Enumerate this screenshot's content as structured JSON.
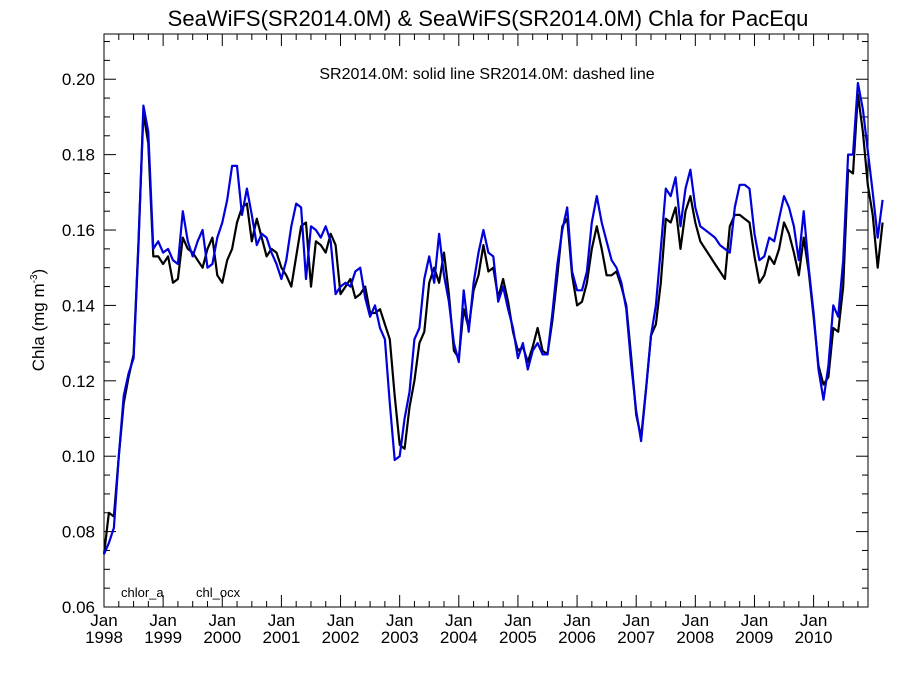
{
  "chart_data": {
    "type": "line",
    "title": "SeaWiFS(SR2014.0M) & SeaWiFS(SR2014.0M)  Chla for PacEqu",
    "annotation": "SR2014.0M: solid line   SR2014.0M: dashed line",
    "ylabel": "Chla (mg m",
    "ylabel_sup": "-3",
    "ylabel_close": ")",
    "xlim": [
      1998.0,
      2010.92
    ],
    "ylim": [
      0.06,
      0.212
    ],
    "yticks": [
      0.06,
      0.08,
      0.1,
      0.12,
      0.14,
      0.16,
      0.18,
      0.2
    ],
    "yticklabels": [
      "0.06",
      "0.08",
      "0.10",
      "0.12",
      "0.14",
      "0.16",
      "0.18",
      "0.20"
    ],
    "xticks": [
      {
        "x": 1998,
        "top": "Jan",
        "bottom": "1998"
      },
      {
        "x": 1999,
        "top": "Jan",
        "bottom": "1999"
      },
      {
        "x": 2000,
        "top": "Jan",
        "bottom": "2000"
      },
      {
        "x": 2001,
        "top": "Jan",
        "bottom": "2001"
      },
      {
        "x": 2002,
        "top": "Jan",
        "bottom": "2002"
      },
      {
        "x": 2003,
        "top": "Jan",
        "bottom": "2003"
      },
      {
        "x": 2004,
        "top": "Jan",
        "bottom": "2004"
      },
      {
        "x": 2005,
        "top": "Jan",
        "bottom": "2005"
      },
      {
        "x": 2006,
        "top": "Jan",
        "bottom": "2006"
      },
      {
        "x": 2007,
        "top": "Jan",
        "bottom": "2007"
      },
      {
        "x": 2008,
        "top": "Jan",
        "bottom": "2008"
      },
      {
        "x": 2009,
        "top": "Jan",
        "bottom": "2009"
      },
      {
        "x": 2010,
        "top": "Jan",
        "bottom": "2010"
      }
    ],
    "grid": false,
    "legend_position": "bottom-left",
    "series": [
      {
        "name": "chlor_a",
        "color": "#000000",
        "values": [
          0.074,
          0.085,
          0.084,
          0.1,
          0.114,
          0.121,
          0.127,
          0.157,
          0.191,
          0.183,
          0.153,
          0.153,
          0.151,
          0.153,
          0.146,
          0.147,
          0.158,
          0.155,
          0.154,
          0.152,
          0.15,
          0.155,
          0.158,
          0.148,
          0.146,
          0.152,
          0.155,
          0.162,
          0.166,
          0.167,
          0.157,
          0.163,
          0.158,
          0.153,
          0.155,
          0.154,
          0.15,
          0.148,
          0.145,
          0.153,
          0.161,
          0.162,
          0.145,
          0.157,
          0.156,
          0.154,
          0.159,
          0.156,
          0.143,
          0.145,
          0.147,
          0.142,
          0.143,
          0.145,
          0.138,
          0.138,
          0.139,
          0.135,
          0.131,
          0.116,
          0.103,
          0.102,
          0.113,
          0.12,
          0.13,
          0.133,
          0.146,
          0.15,
          0.146,
          0.154,
          0.143,
          0.128,
          0.126,
          0.139,
          0.134,
          0.144,
          0.148,
          0.156,
          0.149,
          0.15,
          0.142,
          0.147,
          0.141,
          0.133,
          0.128,
          0.129,
          0.125,
          0.129,
          0.134,
          0.128,
          0.127,
          0.136,
          0.148,
          0.161,
          0.163,
          0.148,
          0.14,
          0.141,
          0.146,
          0.155,
          0.161,
          0.155,
          0.148,
          0.148,
          0.149,
          0.145,
          0.14,
          0.126,
          0.111,
          0.105,
          0.118,
          0.132,
          0.135,
          0.146,
          0.163,
          0.162,
          0.166,
          0.155,
          0.165,
          0.169,
          0.162,
          0.157,
          0.155,
          0.153,
          0.151,
          0.149,
          0.147,
          0.161,
          0.164,
          0.164,
          0.163,
          0.162,
          0.153,
          0.146,
          0.148,
          0.153,
          0.151,
          0.155,
          0.162,
          0.159,
          0.154,
          0.148,
          0.158,
          0.149,
          0.137,
          0.124,
          0.119,
          0.121,
          0.134,
          0.133,
          0.145,
          0.176,
          0.175,
          0.196,
          0.186,
          0.172,
          0.164,
          0.15,
          0.162
        ]
      },
      {
        "name": "chl_ocx",
        "color": "#0000dd",
        "values": [
          0.074,
          0.077,
          0.081,
          0.1,
          0.116,
          0.122,
          0.126,
          0.156,
          0.193,
          0.186,
          0.155,
          0.157,
          0.154,
          0.155,
          0.152,
          0.151,
          0.165,
          0.157,
          0.153,
          0.157,
          0.16,
          0.15,
          0.151,
          0.158,
          0.162,
          0.168,
          0.177,
          0.177,
          0.164,
          0.171,
          0.164,
          0.156,
          0.159,
          0.158,
          0.154,
          0.151,
          0.147,
          0.152,
          0.161,
          0.167,
          0.166,
          0.147,
          0.161,
          0.16,
          0.158,
          0.161,
          0.157,
          0.143,
          0.145,
          0.146,
          0.145,
          0.149,
          0.15,
          0.142,
          0.137,
          0.14,
          0.134,
          0.131,
          0.114,
          0.099,
          0.1,
          0.11,
          0.117,
          0.131,
          0.134,
          0.147,
          0.153,
          0.146,
          0.159,
          0.148,
          0.141,
          0.13,
          0.125,
          0.144,
          0.133,
          0.146,
          0.154,
          0.16,
          0.154,
          0.153,
          0.141,
          0.145,
          0.139,
          0.134,
          0.126,
          0.13,
          0.123,
          0.128,
          0.13,
          0.127,
          0.127,
          0.138,
          0.151,
          0.16,
          0.166,
          0.149,
          0.144,
          0.144,
          0.149,
          0.162,
          0.169,
          0.162,
          0.157,
          0.152,
          0.15,
          0.146,
          0.139,
          0.124,
          0.112,
          0.104,
          0.118,
          0.132,
          0.14,
          0.155,
          0.171,
          0.169,
          0.174,
          0.161,
          0.171,
          0.176,
          0.166,
          0.161,
          0.16,
          0.159,
          0.158,
          0.156,
          0.155,
          0.154,
          0.166,
          0.172,
          0.172,
          0.171,
          0.159,
          0.152,
          0.153,
          0.158,
          0.157,
          0.163,
          0.169,
          0.166,
          0.161,
          0.152,
          0.165,
          0.15,
          0.138,
          0.123,
          0.115,
          0.124,
          0.14,
          0.137,
          0.152,
          0.18,
          0.18,
          0.199,
          0.192,
          0.181,
          0.17,
          0.158,
          0.168
        ]
      }
    ]
  }
}
